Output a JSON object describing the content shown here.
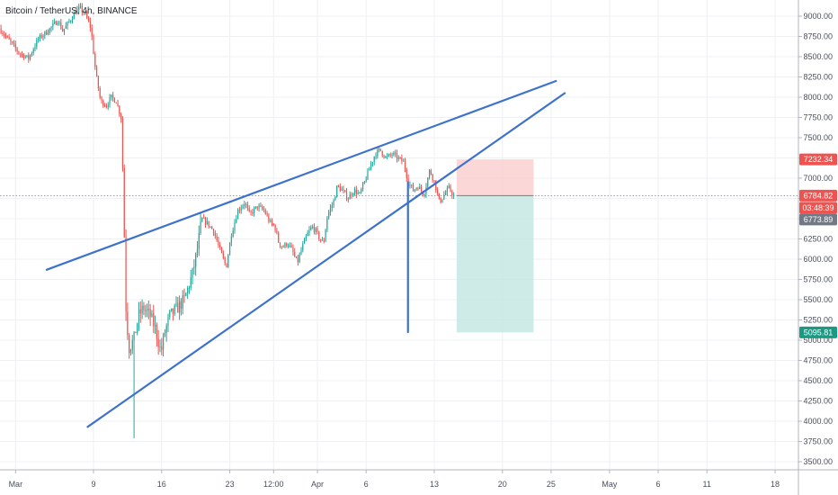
{
  "chart_data": {
    "type": "candlestick",
    "title": "Bitcoin / TetherUS, 4h, BINANCE",
    "symbol": "Bitcoin / TetherUS",
    "interval": "4h",
    "exchange": "BINANCE",
    "x_ticks": [
      {
        "label": "Mar",
        "day": 0
      },
      {
        "label": "9",
        "day": 8
      },
      {
        "label": "16",
        "day": 15
      },
      {
        "label": "23",
        "day": 22
      },
      {
        "label": "12:00",
        "day": 26.5
      },
      {
        "label": "Apr",
        "day": 31
      },
      {
        "label": "6",
        "day": 36
      },
      {
        "label": "13",
        "day": 43
      },
      {
        "label": "20",
        "day": 50
      },
      {
        "label": "25",
        "day": 55
      },
      {
        "label": "May",
        "day": 61
      },
      {
        "label": "6",
        "day": 66
      },
      {
        "label": "11",
        "day": 71
      },
      {
        "label": "18",
        "day": 78
      }
    ],
    "y_ticks": [
      3500,
      3750,
      4000,
      4250,
      4500,
      4750,
      5000,
      5250,
      5500,
      5750,
      6000,
      6250,
      6500,
      6750,
      7000,
      7250,
      7500,
      7750,
      8000,
      8250,
      8500,
      8750,
      9000
    ],
    "y_tick_labels": [
      "3500.00",
      "3750.00",
      "4000.00",
      "4250.00",
      "4500.00",
      "4750.00",
      "5000.00",
      "5250.00",
      "5500.00",
      "5750.00",
      "6000.00",
      "6250.00",
      "6500.00",
      "6750.00",
      "7000.00",
      "7250.00",
      "7500.00",
      "7750.00",
      "8000.00",
      "8250.00",
      "8500.00",
      "8750.00",
      "9000.00"
    ],
    "ylim": [
      3400,
      9200
    ],
    "xlim_days": [
      -1.6,
      80.4
    ],
    "grid": true,
    "colors": {
      "up": "#26a69a",
      "down": "#ef5350",
      "trendline": "#3d72cc",
      "stop_zone": "#f9c9c9",
      "target_zone": "#c2e6e1",
      "price_line": "#ef5350",
      "grid": "#eef0f3"
    },
    "price_path": [
      [
        -1.5,
        8850
      ],
      [
        -0.5,
        8700
      ],
      [
        0.5,
        8550
      ],
      [
        1.5,
        8480
      ],
      [
        2.5,
        8720
      ],
      [
        3.5,
        8820
      ],
      [
        4.5,
        8950
      ],
      [
        5.0,
        8820
      ],
      [
        5.5,
        8900
      ],
      [
        6.3,
        9050
      ],
      [
        6.8,
        9100
      ],
      [
        7.4,
        9000
      ],
      [
        7.9,
        8850
      ],
      [
        8.4,
        8300
      ],
      [
        8.9,
        7950
      ],
      [
        9.5,
        7900
      ],
      [
        10.0,
        8000
      ],
      [
        10.5,
        7950
      ],
      [
        11.0,
        7750
      ],
      [
        11.2,
        7000
      ],
      [
        11.5,
        5400
      ],
      [
        11.8,
        4900
      ],
      [
        12.3,
        5000
      ],
      [
        12.8,
        5300
      ],
      [
        13.3,
        5400
      ],
      [
        14.0,
        5300
      ],
      [
        14.5,
        5150
      ],
      [
        15.1,
        4850
      ],
      [
        15.5,
        5100
      ],
      [
        16.0,
        5300
      ],
      [
        16.8,
        5400
      ],
      [
        17.5,
        5500
      ],
      [
        18.3,
        5800
      ],
      [
        18.8,
        6100
      ],
      [
        19.3,
        6500
      ],
      [
        19.8,
        6450
      ],
      [
        20.5,
        6350
      ],
      [
        21.2,
        6100
      ],
      [
        21.8,
        5900
      ],
      [
        22.3,
        6300
      ],
      [
        23.0,
        6600
      ],
      [
        23.7,
        6700
      ],
      [
        24.2,
        6550
      ],
      [
        25.0,
        6650
      ],
      [
        25.7,
        6600
      ],
      [
        26.3,
        6450
      ],
      [
        26.8,
        6400
      ],
      [
        27.2,
        6200
      ],
      [
        27.6,
        6150
      ],
      [
        28.1,
        6200
      ],
      [
        28.6,
        6100
      ],
      [
        29.1,
        5950
      ],
      [
        29.6,
        6150
      ],
      [
        30.1,
        6300
      ],
      [
        30.6,
        6400
      ],
      [
        31.0,
        6350
      ],
      [
        31.4,
        6250
      ],
      [
        31.8,
        6200
      ],
      [
        32.2,
        6550
      ],
      [
        32.8,
        6700
      ],
      [
        33.2,
        6900
      ],
      [
        33.7,
        6850
      ],
      [
        34.3,
        6750
      ],
      [
        34.9,
        6850
      ],
      [
        35.5,
        6800
      ],
      [
        36.0,
        6950
      ],
      [
        36.6,
        7150
      ],
      [
        37.1,
        7300
      ],
      [
        37.6,
        7350
      ],
      [
        38.2,
        7250
      ],
      [
        38.9,
        7300
      ],
      [
        39.4,
        7250
      ],
      [
        40.0,
        7200
      ],
      [
        40.5,
        6950
      ],
      [
        41.0,
        6850
      ],
      [
        41.5,
        6900
      ],
      [
        42.1,
        6800
      ],
      [
        42.7,
        7100
      ],
      [
        43.2,
        6950
      ],
      [
        43.7,
        6700
      ],
      [
        44.2,
        6800
      ],
      [
        44.7,
        6880
      ],
      [
        45.1,
        6785
      ]
    ],
    "trendlines": [
      {
        "from": [
          3.2,
          5870
        ],
        "to": [
          55.5,
          8200
        ]
      },
      {
        "from": [
          7.4,
          3930
        ],
        "to": [
          56.4,
          8050
        ]
      },
      {
        "from": [
          40.3,
          5100
        ],
        "to": [
          40.3,
          6950
        ]
      }
    ],
    "position_tool": {
      "x_start": 45.3,
      "x_end": 53.2,
      "entry": 6784.82,
      "stop": 7232.34,
      "target": 5095.81
    },
    "spike_low": 3790,
    "spike_low_day": 12.2,
    "price_tags": [
      {
        "label": "7232.34",
        "value": 7232.34,
        "color": "#ef5350"
      },
      {
        "label": "6784.82",
        "value": 6784.82,
        "color": "#ef5350"
      },
      {
        "label": "03:48:39",
        "value": 6635,
        "color": "#ef5350"
      },
      {
        "label": "6773.89",
        "value": 6490,
        "color": "#737886"
      },
      {
        "label": "5095.81",
        "value": 5095.81,
        "color": "#1b9a83"
      }
    ]
  }
}
